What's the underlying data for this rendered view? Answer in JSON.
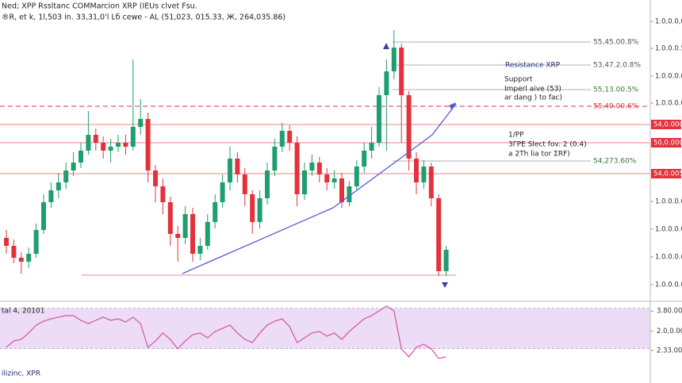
{
  "chart_data": [
    {
      "type": "candlestick",
      "title": "Ned; XPP Rssltanc COMMarcion XRP (IEUs clvet Fsu.",
      "subtitle": "®R, et k, 1l,503 in. 33,31,0'l Lб cewe - AL (51,023, 015.33, Ж, 264,035.86)",
      "up_color": "#1f9e6e",
      "down_color": "#e3323b",
      "categories": [
        null,
        null,
        null,
        null,
        null,
        null,
        null,
        null,
        null,
        null,
        null,
        null,
        null,
        null,
        null,
        null,
        null,
        null,
        null,
        null,
        null,
        null,
        null,
        null,
        null,
        null,
        null,
        null,
        null,
        null,
        null,
        null,
        null,
        null,
        null,
        null,
        null,
        null,
        null,
        null,
        null,
        null,
        null,
        null,
        null,
        null,
        null,
        null,
        null,
        null,
        null,
        null,
        null,
        null,
        null,
        null,
        null,
        null,
        null,
        null
      ],
      "open": [
        8,
        7,
        5.5,
        5,
        6,
        9,
        12.5,
        14,
        15,
        16.5,
        17.5,
        19,
        21,
        20,
        19,
        19.5,
        20,
        19.5,
        22,
        23,
        16.5,
        14.5,
        12.5,
        8.5,
        8,
        11,
        6,
        7,
        10,
        12.5,
        15,
        18,
        16,
        13.5,
        10,
        13,
        16.5,
        19.5,
        21.5,
        20,
        13.5,
        16.5,
        17.5,
        16,
        15,
        15.5,
        12.5,
        14.5,
        17,
        19,
        20,
        26,
        29,
        32,
        26,
        18,
        15,
        17,
        13,
        3.8
      ],
      "high": [
        9,
        7.8,
        6.2,
        6.8,
        9.8,
        13.5,
        15,
        16.2,
        17.5,
        18.8,
        20,
        24,
        21.8,
        20.8,
        20.5,
        21,
        21,
        30.5,
        25.5,
        23.8,
        17.2,
        15.5,
        13.2,
        9.5,
        12,
        11.8,
        8,
        11,
        13.5,
        16,
        19.5,
        18.8,
        16.8,
        14,
        14,
        17.5,
        20.5,
        22.5,
        22.2,
        20.8,
        17.5,
        18.5,
        18.2,
        16.8,
        16.5,
        16.2,
        15.2,
        17.8,
        20,
        22,
        27,
        30.5,
        34.2,
        32.5,
        26.5,
        18.8,
        17.8,
        17.5,
        13.5,
        7
      ],
      "low": [
        6,
        4.8,
        3.5,
        4.2,
        5.5,
        8.5,
        11.8,
        13,
        14.2,
        15.8,
        16.8,
        18.5,
        19,
        18,
        17.5,
        18.8,
        18.5,
        19,
        21,
        15,
        12.5,
        11,
        7,
        5,
        7.2,
        5,
        5.2,
        6.5,
        9.2,
        11.8,
        14,
        15,
        12,
        8.5,
        9.2,
        12.2,
        15.8,
        18.8,
        19,
        12,
        12.8,
        15.8,
        15,
        14,
        14.2,
        11.8,
        12,
        14,
        16.2,
        18,
        19.5,
        19,
        28,
        20,
        16.5,
        13.5,
        14.2,
        12,
        3.2,
        3.2
      ],
      "close": [
        7,
        5.5,
        5,
        6,
        9,
        12.5,
        14,
        15,
        16.5,
        17.5,
        19,
        21,
        20,
        19,
        19.5,
        20,
        19.5,
        22,
        23,
        16.5,
        14.5,
        12.5,
        8.5,
        8,
        11,
        6,
        7,
        10,
        12.5,
        15,
        18,
        16,
        13.5,
        10,
        13,
        16.5,
        19.5,
        21.5,
        20,
        13.5,
        16.5,
        17.5,
        16,
        15,
        15.5,
        12.5,
        14.5,
        17,
        19,
        20,
        26,
        29,
        32,
        26,
        18,
        15,
        17,
        13,
        3.8,
        6.5
      ],
      "ylim": [
        0,
        38
      ],
      "yticks": [
        {
          "value": 35.3,
          "label": "1.0,0.0,0"
        },
        {
          "value": 31.9,
          "label": "1.0.0.0.5"
        },
        {
          "value": 28.4,
          "label": "1.0.0.0.0"
        },
        {
          "value": 25,
          "label": "1.0.0.0.0"
        },
        {
          "value": 12.6,
          "label": "1.0.0.0.0"
        },
        {
          "value": 9.1,
          "label": "1.0.0.0.0"
        },
        {
          "value": 5.6,
          "label": "1.0.0.0.0"
        },
        {
          "value": 2.1,
          "label": "1.0.0.0.0"
        }
      ],
      "levels": [
        {
          "value": 32.7,
          "label": "55,45.00.8%",
          "style": "guide",
          "color": "#555555"
        },
        {
          "value": 29.8,
          "label": "53,47.2.0.8%",
          "style": "guide",
          "color": "#555555"
        },
        {
          "value": 26.7,
          "label": "55,13.00.5%",
          "style": "guide",
          "color": "#2e7d32"
        },
        {
          "value": 24.6,
          "label": "55,40.00.6%",
          "style": "dashed",
          "color": "#e3323b"
        },
        {
          "value": 22.3,
          "label": "54,0.000",
          "style": "tag",
          "color": "#e3323b"
        },
        {
          "value": 20,
          "label": "50,0.000",
          "style": "tag",
          "color": "#e3323b"
        },
        {
          "value": 17.7,
          "label": "54,273.60%",
          "style": "guide",
          "color": "#2e7d32"
        },
        {
          "value": 16.1,
          "label": "54,0.005",
          "style": "tag",
          "color": "#e3323b"
        },
        {
          "value": 3.3,
          "style": "support",
          "color": "#e88a9a"
        }
      ],
      "annotations": [
        "Resistance XRP",
        "Support",
        "Imperl aive (53)",
        "ar dang ) to fac)",
        "1/PP",
        "3ΓΡΕ Slect fov. 2 (0.4)",
        "a 2Th lia tor ΣRF)"
      ],
      "footer": "ilizinc, XPR"
    },
    {
      "type": "line",
      "title": "tal 4, 20101",
      "color": "#d84fa3",
      "band_color": "#ecdcf6",
      "band": [
        36,
        80
      ],
      "values": [
        37.3,
        44.3,
        46,
        53,
        61.6,
        65.9,
        68.5,
        70.3,
        72,
        72,
        66.8,
        63.3,
        66.8,
        70.3,
        66.8,
        68.5,
        65,
        70.3,
        63.3,
        37.3,
        44.3,
        53,
        46,
        35.6,
        44.3,
        51.2,
        53,
        47.7,
        54.7,
        58.1,
        61.6,
        53,
        46,
        42.5,
        53,
        61.6,
        65.9,
        68.5,
        59.9,
        42.5,
        47.7,
        53,
        54.7,
        49.5,
        53,
        46,
        54.7,
        61.6,
        68.5,
        72,
        77.2,
        82.4,
        77.2,
        35.6,
        26.9,
        37.3,
        40.8,
        35.6,
        25.2,
        26.9
      ],
      "ylim": [
        20,
        85
      ],
      "yticks": [
        {
          "value": 77,
          "label": "3.80.00"
        },
        {
          "value": 55,
          "label": "2.0,0.00"
        },
        {
          "value": 34,
          "label": "2.33.00"
        }
      ]
    }
  ]
}
